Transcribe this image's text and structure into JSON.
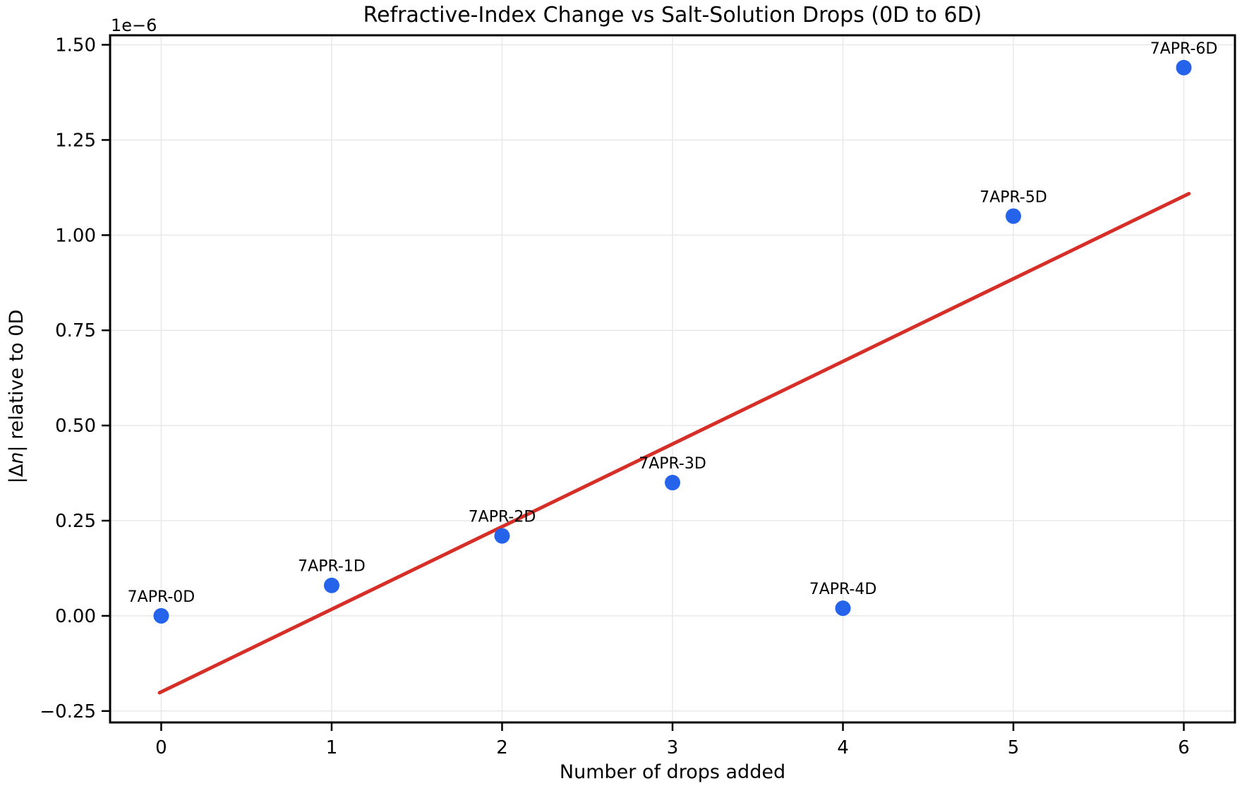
{
  "chart_data": {
    "type": "scatter",
    "title": "Refractive-Index Change vs Salt-Solution Drops (0D to 6D)",
    "xlabel": "Number of drops added",
    "ylabel": {
      "prefix": "|Δ",
      "italic": "n",
      "suffix": "| relative to 0D",
      "full_text": "|Δn| relative to 0D"
    },
    "y_offset_text": "1e−6",
    "x": [
      0,
      1,
      2,
      3,
      4,
      5,
      6
    ],
    "y_in_1e6_units": [
      0.0,
      0.08,
      0.21,
      0.35,
      0.02,
      1.05,
      1.44
    ],
    "point_labels": [
      "7APR-0D",
      "7APR-1D",
      "7APR-2D",
      "7APR-3D",
      "7APR-4D",
      "7APR-5D",
      "7APR-6D"
    ],
    "trend": {
      "type": "linear_fit",
      "slope_1e6_per_drop": 0.218,
      "intercept_1e6": -0.202,
      "x_start": -0.01,
      "y_start": -0.202,
      "x_end": 6.03,
      "y_end": 1.109
    },
    "xticks": {
      "values": [
        0,
        1,
        2,
        3,
        4,
        5,
        6
      ],
      "labels": [
        "0",
        "1",
        "2",
        "3",
        "4",
        "5",
        "6"
      ]
    },
    "yticks": {
      "values": [
        -0.25,
        0.0,
        0.25,
        0.5,
        0.75,
        1.0,
        1.25,
        1.5
      ],
      "labels": [
        "−0.25",
        "0.00",
        "0.25",
        "0.50",
        "0.75",
        "1.00",
        "1.25",
        "1.50"
      ]
    },
    "xlim": [
      -0.3,
      6.3
    ],
    "ylim": [
      -0.28,
      1.525
    ],
    "grid": true,
    "legend": "none",
    "colors": {
      "point": "#2563eb",
      "trend": "#d62f28",
      "grid": "#e8e8e8",
      "spine": "#000000",
      "background": "#ffffff",
      "text": "#000000"
    }
  }
}
